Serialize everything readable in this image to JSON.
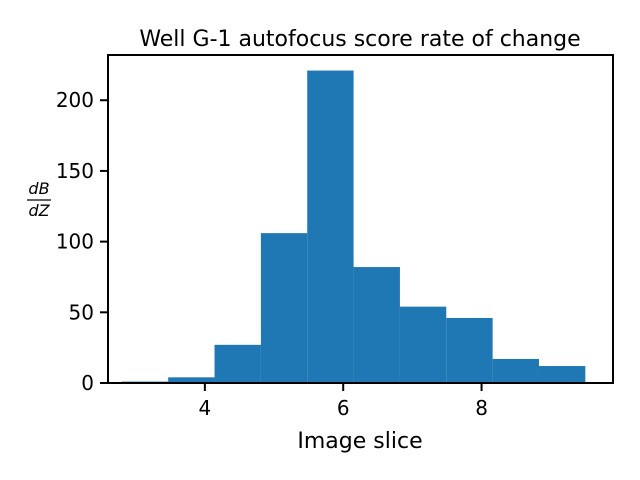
{
  "chart_data": {
    "type": "bar",
    "title": "Well G-1 autofocus score rate of change",
    "xlabel": "Image slice",
    "ylabel": {
      "numerator": "dB",
      "denominator": "dZ"
    },
    "xlim": [
      2.6,
      9.9
    ],
    "ylim": [
      0,
      232
    ],
    "xticks": [
      4,
      6,
      8
    ],
    "yticks": [
      0,
      50,
      100,
      150,
      200
    ],
    "grid": false,
    "legend": "none",
    "bar_color": "#1f77b4",
    "bins": [
      {
        "x0": 2.8,
        "x1": 3.47,
        "value": 1
      },
      {
        "x0": 3.47,
        "x1": 4.14,
        "value": 4
      },
      {
        "x0": 4.14,
        "x1": 4.81,
        "value": 27
      },
      {
        "x0": 4.81,
        "x1": 5.48,
        "value": 106
      },
      {
        "x0": 5.48,
        "x1": 6.15,
        "value": 221
      },
      {
        "x0": 6.15,
        "x1": 6.82,
        "value": 82
      },
      {
        "x0": 6.82,
        "x1": 7.49,
        "value": 54
      },
      {
        "x0": 7.49,
        "x1": 8.16,
        "value": 46
      },
      {
        "x0": 8.16,
        "x1": 8.83,
        "value": 17
      },
      {
        "x0": 8.83,
        "x1": 9.5,
        "value": 12
      }
    ]
  }
}
